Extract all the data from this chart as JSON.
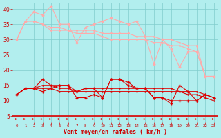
{
  "title": "",
  "xlabel": "Vent moyen/en rafales ( km/h )",
  "background_color": "#b2eeee",
  "grid_color": "#80cccc",
  "x_ticks": [
    0,
    1,
    2,
    3,
    4,
    5,
    6,
    7,
    8,
    9,
    10,
    11,
    12,
    13,
    14,
    15,
    16,
    17,
    18,
    19,
    20,
    21,
    22,
    23
  ],
  "ylim": [
    3,
    42
  ],
  "xlim": [
    -0.5,
    23.5
  ],
  "yticks": [
    5,
    10,
    15,
    20,
    25,
    30,
    35,
    40
  ],
  "rafales_line1": [
    30,
    36,
    39,
    38,
    41,
    35,
    35,
    29,
    34,
    35,
    36,
    37,
    36,
    35,
    36,
    31,
    22,
    30,
    27,
    21,
    26,
    26,
    18,
    18
  ],
  "rafales_line2": [
    30,
    36,
    36,
    35,
    34,
    34,
    33,
    33,
    33,
    33,
    32,
    32,
    32,
    32,
    31,
    31,
    31,
    30,
    30,
    29,
    28,
    28,
    18,
    18
  ],
  "rafales_line3": [
    30,
    36,
    36,
    35,
    33,
    33,
    33,
    32,
    32,
    32,
    31,
    30,
    30,
    30,
    30,
    30,
    29,
    29,
    28,
    28,
    27,
    26,
    18,
    18
  ],
  "mean_line1": [
    12,
    14,
    14,
    17,
    15,
    15,
    15,
    11,
    11,
    12,
    11,
    17,
    17,
    15,
    14,
    14,
    11,
    11,
    10,
    10,
    10,
    10,
    12,
    11
  ],
  "mean_line2": [
    12,
    14,
    14,
    15,
    15,
    14,
    14,
    13,
    14,
    14,
    14,
    14,
    14,
    14,
    14,
    14,
    14,
    14,
    14,
    13,
    13,
    13,
    12,
    11
  ],
  "mean_line3": [
    12,
    14,
    14,
    13,
    14,
    15,
    15,
    13,
    14,
    14,
    11,
    17,
    17,
    16,
    14,
    14,
    11,
    11,
    9,
    15,
    13,
    10,
    12,
    11
  ],
  "mean_line4": [
    12,
    14,
    14,
    14,
    14,
    13,
    13,
    13,
    13,
    13,
    13,
    13,
    13,
    13,
    13,
    13,
    13,
    13,
    13,
    13,
    12,
    12,
    11,
    10
  ],
  "light_pink": "#ffaaaa",
  "dark_red": "#dd0000",
  "xlabel_color": "#cc0000",
  "tick_color": "#cc0000"
}
